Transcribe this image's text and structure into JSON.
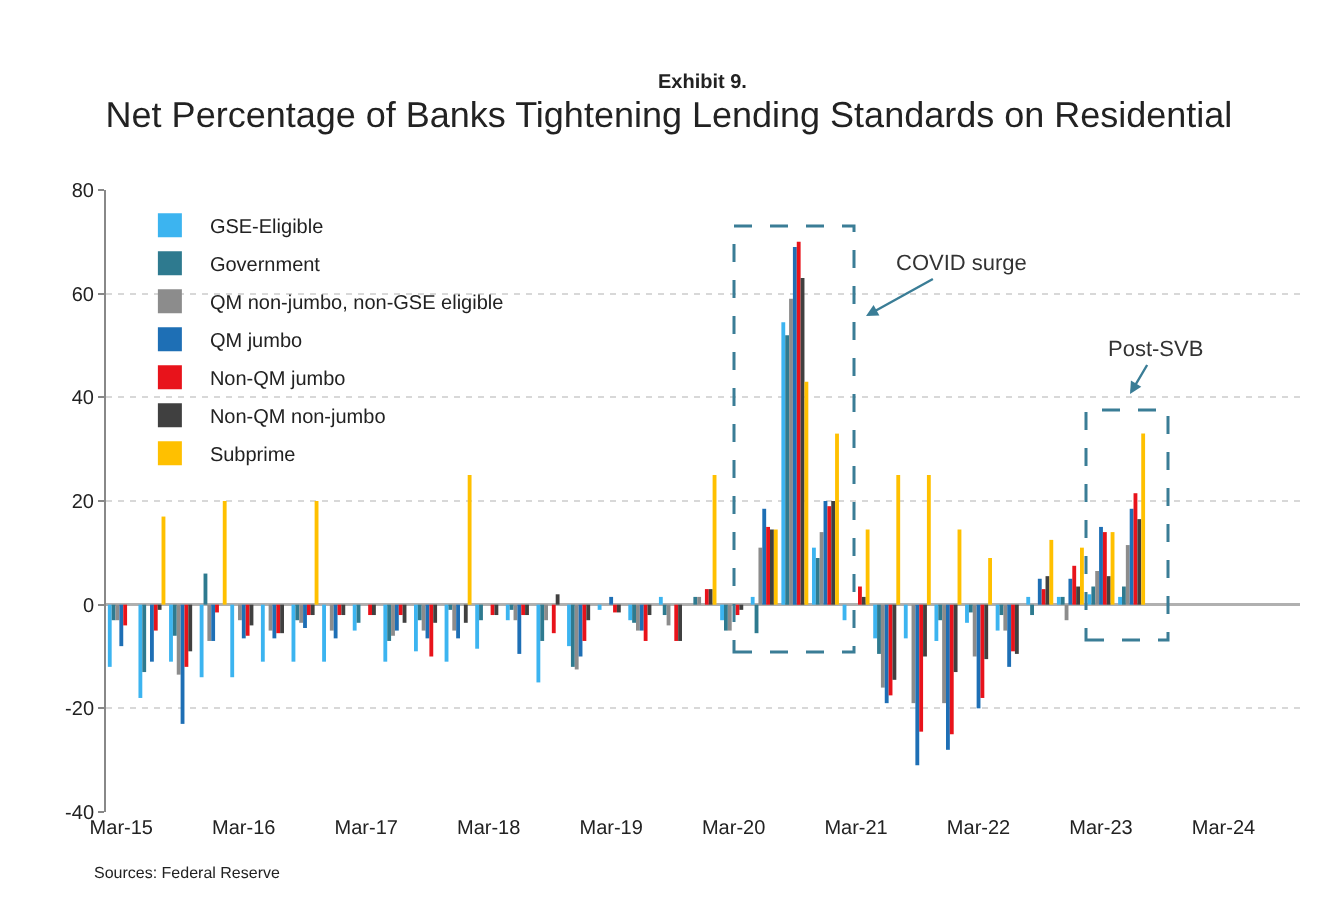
{
  "chart_data": {
    "type": "bar",
    "subtitle": "Exhibit 9.",
    "title": "Net Percentage of Banks Tightening Lending Standards on Residential",
    "categories": [
      "Mar-15",
      null,
      null,
      null,
      "Mar-16",
      null,
      null,
      null,
      "Mar-17",
      null,
      null,
      null,
      "Mar-18",
      null,
      null,
      null,
      "Mar-19",
      null,
      null,
      null,
      "Mar-20",
      null,
      null,
      null,
      "Mar-21",
      null,
      null,
      null,
      "Mar-22",
      null,
      null,
      null,
      "Mar-23",
      null,
      null,
      null,
      "Mar-24",
      null,
      null
    ],
    "series": [
      {
        "name": "GSE-Eligible",
        "color": "#3cb4f0",
        "values": [
          -12,
          -18,
          -11,
          -14,
          -14,
          -11,
          -11,
          -11,
          -5,
          -11,
          -9,
          -11,
          -8.5,
          -3,
          -15,
          -8,
          -1,
          -3,
          1.5,
          0,
          -3,
          1.5,
          54.5,
          11,
          -3,
          -6.5,
          -6.5,
          -7,
          -3.5,
          -5,
          1.5,
          1.5,
          2,
          1.5,
          null,
          null,
          null,
          null,
          null
        ]
      },
      {
        "name": "Government",
        "color": "#2e7a8f",
        "values": [
          -3,
          -13,
          -6,
          6,
          0,
          0,
          -3,
          0,
          -3.5,
          -7,
          -3,
          -1,
          -3,
          -1,
          -7,
          -12,
          0,
          -3.5,
          -2,
          1.5,
          -5,
          -5.5,
          52,
          9,
          0,
          -9.5,
          0,
          -3,
          -1.5,
          -2,
          -2,
          1.5,
          3.5,
          3.5,
          null,
          null,
          null,
          null,
          null
        ]
      },
      {
        "name": "QM non-jumbo, non-GSE eligible",
        "color": "#8c8c8c",
        "values": [
          -3,
          0,
          -13.5,
          -7,
          -3,
          -5,
          -3.5,
          -5,
          0,
          -6,
          -5,
          -5,
          0,
          -3,
          -3,
          -12.5,
          0,
          -5,
          -4,
          1.5,
          -5,
          11,
          59,
          14,
          0,
          -16,
          -19,
          -19,
          -10,
          -5,
          0,
          -3,
          6.5,
          11.5,
          null,
          null,
          null,
          null,
          null
        ]
      },
      {
        "name": "QM jumbo",
        "color": "#1e6fb5",
        "values": [
          -8,
          -11,
          -23,
          -7,
          -6.5,
          -6.5,
          -4.5,
          -6.5,
          0,
          -5,
          -6.5,
          -6.5,
          0,
          -9.5,
          0,
          -10,
          1.5,
          -5,
          0,
          0,
          null,
          18.5,
          69,
          20,
          0,
          -19,
          -31,
          -28,
          -20,
          -12,
          5,
          5,
          15,
          18.5,
          null,
          null,
          null,
          null,
          null
        ]
      },
      {
        "name": "Non-QM jumbo",
        "color": "#e8131b",
        "values": [
          -4,
          -5,
          -12,
          -1.5,
          -6,
          -5.5,
          -2,
          -2,
          -2,
          -2,
          -10,
          0,
          -2,
          -2,
          -5.5,
          -7,
          -1.5,
          -7,
          -7,
          3,
          -2,
          15,
          70,
          19,
          3.5,
          -17.5,
          -24.5,
          -25,
          -18,
          -9,
          3,
          7.5,
          14,
          21.5,
          null,
          null,
          null,
          null,
          null
        ]
      },
      {
        "name": "Non-QM non-jumbo",
        "color": "#404040",
        "values": [
          0,
          -1,
          -9,
          0,
          -4,
          -5.5,
          -2,
          -2,
          -2,
          -3.5,
          -3.5,
          -3.5,
          -2,
          -2,
          2,
          -3,
          -1.5,
          -2,
          -7,
          3,
          -1,
          14.5,
          63,
          20,
          1.5,
          -14.5,
          -10,
          -13,
          -10.5,
          -9.5,
          5.5,
          3.5,
          5.5,
          16.5,
          null,
          null,
          null,
          null,
          null
        ]
      },
      {
        "name": "Subprime",
        "color": "#ffc000",
        "values": [
          0,
          17,
          0,
          20,
          0,
          0,
          20,
          0,
          0,
          0,
          0,
          25,
          0,
          0,
          0,
          0,
          0,
          0,
          0,
          25,
          0,
          14.5,
          43,
          33,
          14.5,
          25,
          25,
          14.5,
          9,
          0,
          12.5,
          11,
          14,
          33,
          null,
          null,
          null,
          null,
          null
        ]
      }
    ],
    "ylim": [
      -40,
      80
    ],
    "yticks": [
      -40,
      -20,
      0,
      20,
      40,
      60,
      80
    ],
    "grid": "y",
    "legend": "top left",
    "annotations": [
      "COVID surge",
      "Post-SVB",
      "Sources: Federal Reserve"
    ]
  }
}
